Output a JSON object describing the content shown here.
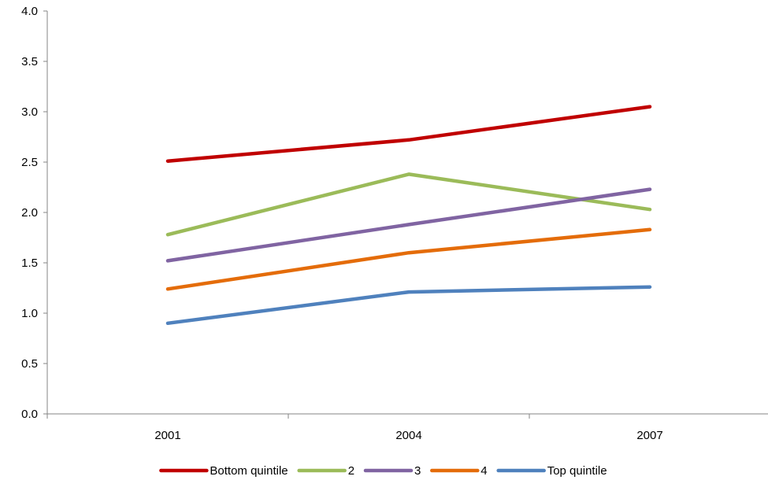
{
  "chart_data": {
    "type": "line",
    "title": "",
    "xlabel": "",
    "ylabel": "",
    "categories": [
      "2001",
      "2004",
      "2007"
    ],
    "ylim": [
      0,
      4
    ],
    "yticks": [
      "0.0",
      "0.5",
      "1.0",
      "1.5",
      "2.0",
      "2.5",
      "3.0",
      "3.5",
      "4.0"
    ],
    "grid": false,
    "legend_position": "bottom",
    "series": [
      {
        "name": "Bottom quintile",
        "color": "#C00000",
        "values": [
          2.51,
          2.72,
          3.05
        ]
      },
      {
        "name": "2",
        "color": "#9BBB59",
        "values": [
          1.78,
          2.38,
          2.03
        ]
      },
      {
        "name": "3",
        "color": "#8064A2",
        "values": [
          1.52,
          1.88,
          2.23
        ]
      },
      {
        "name": "4",
        "color": "#E46C0A",
        "values": [
          1.24,
          1.6,
          1.83
        ]
      },
      {
        "name": "Top quintile",
        "color": "#4F81BD",
        "values": [
          0.9,
          1.21,
          1.26
        ]
      }
    ]
  }
}
